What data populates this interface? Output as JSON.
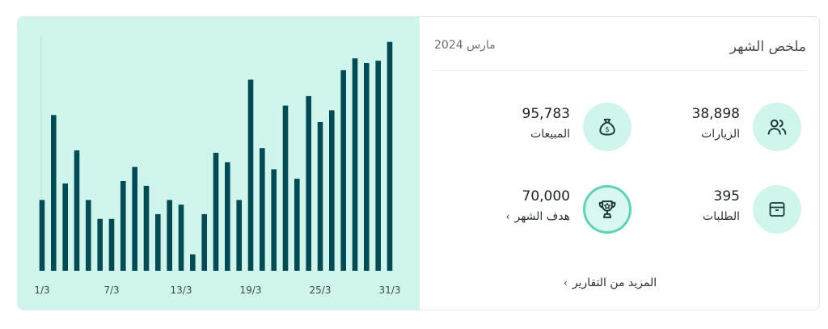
{
  "summary": {
    "title": "ملخص الشهر",
    "period": "مارس 2024",
    "metrics": {
      "visits": {
        "value": "38,898",
        "label": "الزيارات",
        "icon": "users-icon"
      },
      "sales": {
        "value": "95,783",
        "label": "المبيعات",
        "icon": "money-bag-icon"
      },
      "orders": {
        "value": "395",
        "label": "الطلبات",
        "icon": "box-icon"
      },
      "goal": {
        "value": "70,000",
        "label": "هدف الشهر",
        "icon": "trophy-icon"
      }
    },
    "more_link": "المزيد من التقارير"
  },
  "colors": {
    "bar": "#044a55",
    "panel_bg": "#cff5ec",
    "accent": "#5fd3b8"
  },
  "chart_data": {
    "type": "bar",
    "categories": [
      "1/3",
      "2/3",
      "3/3",
      "4/3",
      "5/3",
      "6/3",
      "7/3",
      "8/3",
      "9/3",
      "10/3",
      "11/3",
      "12/3",
      "13/3",
      "14/3",
      "15/3",
      "16/3",
      "17/3",
      "18/3",
      "19/3",
      "20/3",
      "21/3",
      "22/3",
      "23/3",
      "24/3",
      "25/3",
      "26/3",
      "27/3",
      "28/3",
      "29/3",
      "30/3",
      "31/3"
    ],
    "tick_labels": [
      "1/3",
      "7/3",
      "13/3",
      "19/3",
      "25/3",
      "31/3"
    ],
    "values": [
      30,
      66,
      37,
      51,
      30,
      22,
      22,
      38,
      44,
      36,
      24,
      30,
      28,
      7,
      24,
      50,
      46,
      30,
      81,
      52,
      43,
      70,
      39,
      74,
      63,
      68,
      85,
      90,
      88,
      89,
      97
    ],
    "ylim": [
      0,
      100
    ],
    "grid": false
  }
}
